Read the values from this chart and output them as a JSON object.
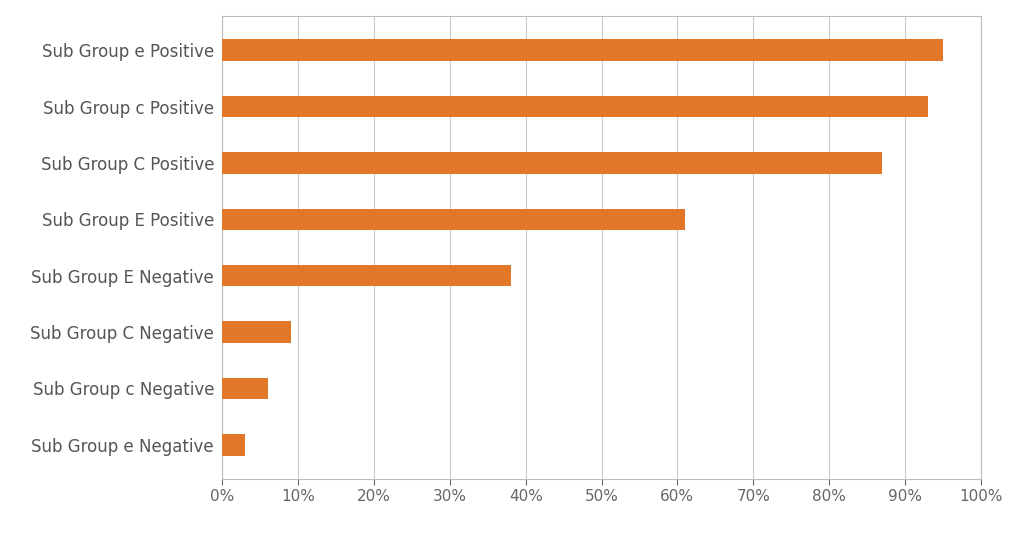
{
  "categories": [
    "Sub Group e Negative",
    "Sub Group c Negative",
    "Sub Group C Negative",
    "Sub Group E Negative",
    "Sub Group E Positive",
    "Sub Group C Positive",
    "Sub Group c Positive",
    "Sub Group e Positive"
  ],
  "values": [
    0.03,
    0.06,
    0.09,
    0.38,
    0.61,
    0.87,
    0.93,
    0.95
  ],
  "bar_color": "#E07828",
  "background_color": "#ffffff",
  "xlim": [
    0,
    1.0
  ],
  "xticks": [
    0.0,
    0.1,
    0.2,
    0.3,
    0.4,
    0.5,
    0.6,
    0.7,
    0.8,
    0.9,
    1.0
  ],
  "xtick_labels": [
    "0%",
    "10%",
    "20%",
    "30%",
    "40%",
    "50%",
    "60%",
    "70%",
    "80%",
    "90%",
    "100%"
  ],
  "grid_color": "#cccccc",
  "label_fontsize": 12,
  "tick_fontsize": 11,
  "bar_height": 0.38
}
